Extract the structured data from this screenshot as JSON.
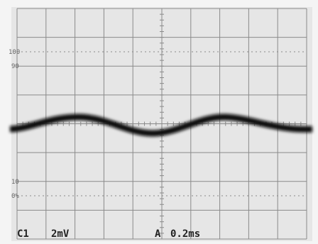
{
  "scale_labels": {
    "top_a": "100",
    "top_b": "90",
    "bottom_a": "10",
    "bottom_b": "0%"
  },
  "readout": {
    "channel": "C1",
    "volts_per_div": "2mV",
    "trigger": "A",
    "time_per_div": "0.2ms"
  }
}
